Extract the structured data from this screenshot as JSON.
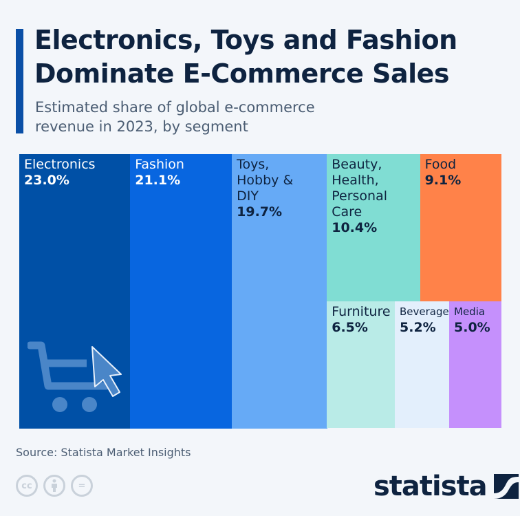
{
  "header": {
    "title": "Electronics, Toys and Fashion\nDominate E-Commerce Sales",
    "subtitle": "Estimated share of global e-commerce\nrevenue in 2023, by segment"
  },
  "chart_data": {
    "type": "treemap",
    "unit": "%",
    "categories": [
      "Electronics",
      "Fashion",
      "Toys, Hobby & DIY",
      "Beauty, Health, Personal Care",
      "Food",
      "Furniture",
      "Beverages",
      "Media"
    ],
    "labels": [
      "Electronics",
      "Fashion",
      "Toys,\nHobby &\nDIY",
      "Beauty,\nHealth,\nPersonal\nCare",
      "Food",
      "Furniture",
      "Beverages",
      "Media"
    ],
    "values": [
      23.0,
      21.1,
      19.7,
      10.4,
      9.1,
      6.5,
      5.2,
      5.0
    ],
    "value_labels": [
      "23.0%",
      "21.1%",
      "19.7%",
      "10.4%",
      "9.1%",
      "6.5%",
      "5.2%",
      "5.0%"
    ],
    "colors": [
      "#0050a6",
      "#0866e0",
      "#66aaf6",
      "#80ddd3",
      "#ff8249",
      "#b9ebe7",
      "#e3effc",
      "#c590fc"
    ],
    "text_colors": [
      "#ffffff",
      "#ffffff",
      "#0e2340",
      "#0e2340",
      "#0e2340",
      "#0e2340",
      "#0e2340",
      "#0e2340"
    ]
  },
  "footer": {
    "source": "Source: Statista Market Insights",
    "logo": "statista",
    "license_icons": [
      "cc",
      "by",
      "nd"
    ],
    "cc": "cc",
    "nd": "="
  }
}
